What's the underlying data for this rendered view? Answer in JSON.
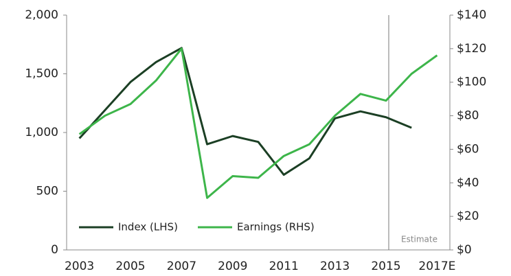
{
  "chart_data": {
    "type": "line",
    "categories": [
      "2003",
      null,
      "2005",
      null,
      "2007",
      null,
      "2009",
      null,
      "2011",
      null,
      "2013",
      null,
      "2015",
      null,
      "2017E"
    ],
    "series": [
      {
        "name": "Index (LHS)",
        "color": "#1b3f24",
        "values": [
          950,
          1190,
          1430,
          1600,
          1720,
          900,
          970,
          920,
          640,
          780,
          1120,
          1180,
          1130,
          1040,
          null
        ]
      },
      {
        "name": "Earnings (RHS)",
        "color": "#3db54a",
        "axis": "y2",
        "values": [
          69,
          80,
          87,
          101,
          120,
          31,
          44,
          43,
          56,
          63,
          80,
          93,
          89,
          105,
          116
        ]
      }
    ],
    "ylim": [
      0,
      2000
    ],
    "yticks": [
      0,
      500,
      {
        "value": 1000,
        "label": "1,000"
      },
      {
        "value": 1500,
        "label": "1,500"
      },
      {
        "value": 2000,
        "label": "2,000"
      }
    ],
    "y2lim": [
      0,
      140
    ],
    "y2ticks": [
      {
        "value": 0,
        "label": "$0"
      },
      {
        "value": 20,
        "label": "$20"
      },
      {
        "value": 40,
        "label": "$40"
      },
      {
        "value": 60,
        "label": "$60"
      },
      {
        "value": 80,
        "label": "$80"
      },
      {
        "value": 100,
        "label": "$100"
      },
      {
        "value": 120,
        "label": "$120"
      },
      {
        "value": 140,
        "label": "$140"
      }
    ],
    "annotation": "Estimate",
    "legend": "lower left",
    "grid": false
  }
}
